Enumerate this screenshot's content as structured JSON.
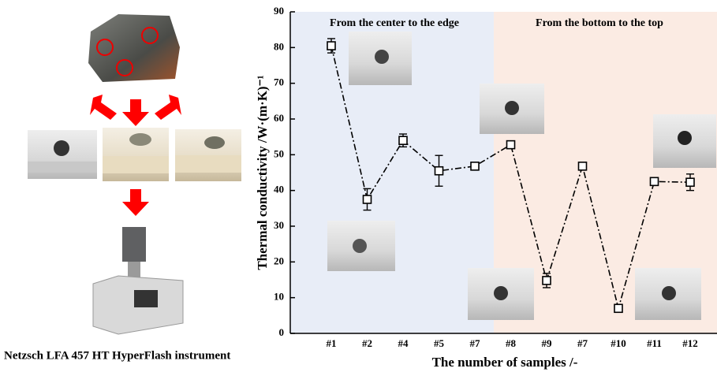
{
  "chart_data": {
    "type": "line",
    "ylabel": "Thermal conductivity /W·(m·K)⁻¹",
    "xlabel": "The number of samples /-",
    "annotations": [
      "From the center to the edge",
      "From the bottom to the top"
    ],
    "caption": "Netzsch LFA 457 HT HyperFlash instrument",
    "categories": [
      "#1",
      "#2",
      "#4",
      "#5",
      "#7",
      "#8",
      "#9",
      "#7",
      "#10",
      "#11",
      "#12"
    ],
    "series": [
      {
        "color": "#000000",
        "values": [
          80.5,
          37.5,
          54,
          45.5,
          46.8,
          52.8,
          14.8,
          46.8,
          7,
          42.5,
          42.3
        ],
        "errors": [
          2,
          3,
          1.8,
          4.3,
          0.7,
          1,
          2,
          0.5,
          0.6,
          0.5,
          2.3
        ]
      }
    ],
    "ylim": [
      0,
      90
    ],
    "yticks": [
      0,
      10,
      20,
      30,
      40,
      50,
      60,
      70,
      80,
      90
    ]
  }
}
